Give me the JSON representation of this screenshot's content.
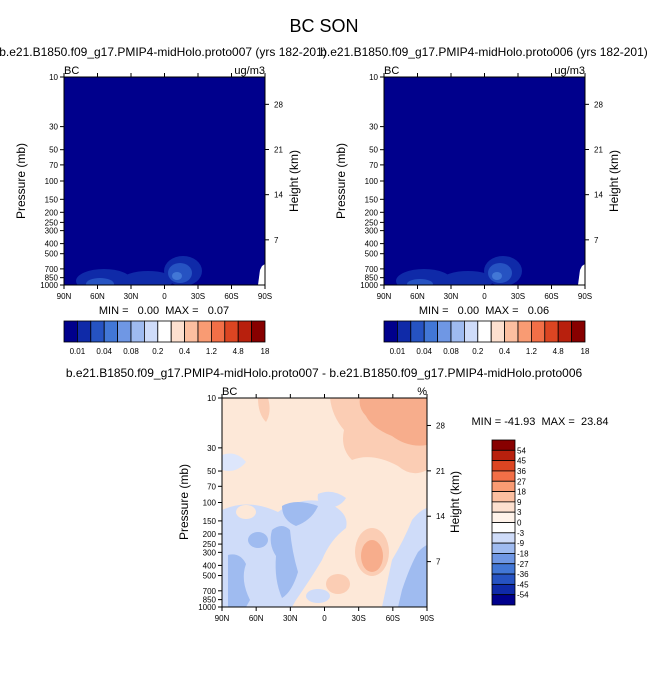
{
  "page": {
    "title": "BC SON"
  },
  "colors": {
    "background_level0": "#00008c",
    "panel_border": "#000000"
  },
  "chart_data": [
    {
      "id": "top-left",
      "type": "heatmap",
      "title": "b.e21.B1850.f09_g17.PMIP4-midHolo.proto007 (yrs 182-201)",
      "left_label": "BC",
      "right_label": "ug/m3",
      "xlabel": "",
      "ylabel": "Pressure (mb)",
      "y2label": "Height (km)",
      "x_tick_labels": [
        "90N",
        "60N",
        "30N",
        "0",
        "30S",
        "60S",
        "90S"
      ],
      "y_tick_labels": [
        "10",
        "30",
        "50",
        "70",
        "100",
        "150",
        "200",
        "250",
        "300",
        "400",
        "500",
        "700",
        "850",
        "1000"
      ],
      "y2_tick_labels": [
        "28",
        "21",
        "14",
        "7"
      ],
      "stats_text": "MIN =   0.00  MAX =   0.07",
      "min": 0.0,
      "max": 0.07,
      "colorbar": {
        "tick_labels": [
          "0.01",
          "0.04",
          "0.08",
          "0.2",
          "0.4",
          "1.2",
          "4.8",
          "18"
        ],
        "colors": [
          "#00008c",
          "#0f2aa8",
          "#2653c2",
          "#4277d6",
          "#6f97e4",
          "#9fbbf0",
          "#cfdcf9",
          "#ffffff",
          "#fde0cf",
          "#fcbfa0",
          "#f99b73",
          "#f26f47",
          "#dc4522",
          "#b8200d",
          "#870000"
        ]
      },
      "features": [
        {
          "name": "low-level plume 30N",
          "level": 1
        },
        {
          "name": "plume near equator",
          "level": 1
        },
        {
          "name": "peak 10S-20S near surface",
          "level": 2
        },
        {
          "name": "surface 85S-90S",
          "level": 7
        }
      ]
    },
    {
      "id": "top-right",
      "type": "heatmap",
      "title": "b.e21.B1850.f09_g17.PMIP4-midHolo.proto006 (yrs 182-201)",
      "left_label": "BC",
      "right_label": "ug/m3",
      "xlabel": "",
      "ylabel": "Pressure (mb)",
      "y2label": "Height (km)",
      "x_tick_labels": [
        "90N",
        "60N",
        "30N",
        "0",
        "30S",
        "60S",
        "90S"
      ],
      "y_tick_labels": [
        "10",
        "30",
        "50",
        "70",
        "100",
        "150",
        "200",
        "250",
        "300",
        "400",
        "500",
        "700",
        "850",
        "1000"
      ],
      "y2_tick_labels": [
        "28",
        "21",
        "14",
        "7"
      ],
      "stats_text": "MIN =   0.00  MAX =   0.06",
      "min": 0.0,
      "max": 0.06,
      "colorbar": {
        "tick_labels": [
          "0.01",
          "0.04",
          "0.08",
          "0.2",
          "0.4",
          "1.2",
          "4.8",
          "18"
        ],
        "colors": [
          "#00008c",
          "#0f2aa8",
          "#2653c2",
          "#4277d6",
          "#6f97e4",
          "#9fbbf0",
          "#cfdcf9",
          "#ffffff",
          "#fde0cf",
          "#fcbfa0",
          "#f99b73",
          "#f26f47",
          "#dc4522",
          "#b8200d",
          "#870000"
        ]
      },
      "features": [
        {
          "name": "low-level plume 30N",
          "level": 1
        },
        {
          "name": "plume near equator",
          "level": 1
        },
        {
          "name": "peak 10S-20S near surface",
          "level": 2
        },
        {
          "name": "surface 85S-90S",
          "level": 7
        }
      ]
    },
    {
      "id": "difference",
      "type": "heatmap",
      "title": "b.e21.B1850.f09_g17.PMIP4-midHolo.proto007 - b.e21.B1850.f09_g17.PMIP4-midHolo.proto006",
      "left_label": "BC",
      "right_label": "%",
      "xlabel": "",
      "ylabel": "Pressure (mb)",
      "y2label": "Height (km)",
      "x_tick_labels": [
        "90N",
        "60N",
        "30N",
        "0",
        "30S",
        "60S",
        "90S"
      ],
      "y_tick_labels": [
        "10",
        "30",
        "50",
        "70",
        "100",
        "150",
        "200",
        "250",
        "300",
        "400",
        "500",
        "700",
        "850",
        "1000"
      ],
      "y2_tick_labels": [
        "28",
        "21",
        "14",
        "7"
      ],
      "stats_text": "MIN = -41.93  MAX =  23.84",
      "min": -41.93,
      "max": 23.84,
      "colorbar": {
        "tick_labels": [
          "54",
          "45",
          "36",
          "27",
          "18",
          "9",
          "3",
          "0",
          "-3",
          "-9",
          "-18",
          "-27",
          "-36",
          "-45",
          "-54"
        ],
        "colors": [
          "#870000",
          "#b8200d",
          "#dc4522",
          "#f26f47",
          "#f99b73",
          "#fcbfa0",
          "#fde0cf",
          "#fff3ea",
          "#ffffff",
          "#cfdcf9",
          "#9fbbf0",
          "#6f97e4",
          "#4277d6",
          "#2653c2",
          "#0f2aa8",
          "#00008c"
        ]
      },
      "features": [
        {
          "name": "base field",
          "value": 1.5
        },
        {
          "name": "upper-level positive SH",
          "value": 12
        },
        {
          "name": "positive column 30S-50S",
          "value": 12
        },
        {
          "name": "negative mid-levels NH",
          "value": -6
        },
        {
          "name": "negative band near 40N",
          "value": -12
        },
        {
          "name": "negative near surface 60S-90S",
          "value": -6
        }
      ]
    }
  ]
}
